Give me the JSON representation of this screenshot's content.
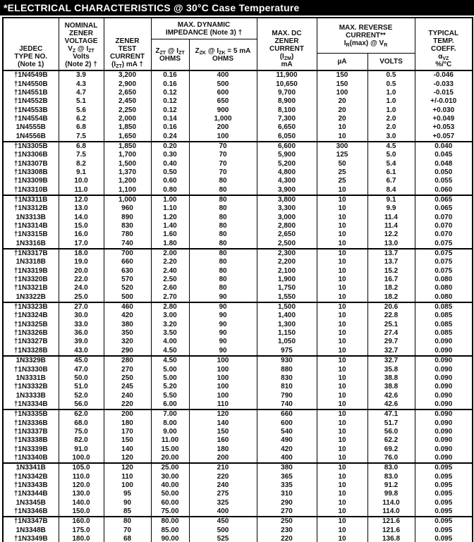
{
  "title": "*ELECTRICAL CHARACTERISTICS @ 30°C Case Temperature",
  "table": {
    "columns": {
      "jedec": {
        "lines": [
          "JEDEC",
          "TYPE NO.",
          "(Note 1)"
        ]
      },
      "vz": {
        "lines": [
          "NOMINAL",
          "ZENER",
          "VOLTAGE",
          "V_{Z} @ I_{ZT}",
          "Volts",
          "(Note 2) †"
        ]
      },
      "izt": {
        "lines": [
          "ZENER",
          "TEST",
          "CURRENT",
          "(I_{ZT}) mA †"
        ]
      },
      "impedance": {
        "lines": [
          "MAX. DYNAMIC",
          "IMPEDANCE (Note 3) †"
        ],
        "sub": [
          {
            "lines": [
              "Z_{ZT} @ I_{ZT}",
              "OHMS"
            ]
          },
          {
            "lines": [
              "Z_{ZK} @ I_{ZK} = 5 mA",
              "OHMS"
            ]
          }
        ]
      },
      "izm": {
        "lines": [
          "MAX. DC",
          "ZENER",
          "CURRENT",
          "(I_{ZM})",
          "mA"
        ]
      },
      "reverse": {
        "lines": [
          "MAX. REVERSE",
          "CURRENT**",
          "I_{R}(max) @ V_{R}"
        ],
        "sub": [
          {
            "lines": [
              "µA"
            ]
          },
          {
            "lines": [
              "VOLTS"
            ]
          }
        ]
      },
      "tc": {
        "lines": [
          "TYPICAL",
          "TEMP.",
          "COEFF.",
          "α_{VZ}",
          "%/°C"
        ]
      }
    },
    "groups": [
      {
        "rows": [
          [
            "†1N4549B",
            "3.9",
            "3,200",
            "0.16",
            "400",
            "11,900",
            "150",
            "0.5",
            "-0.046"
          ],
          [
            "†1N4550B",
            "4.3",
            "2,900",
            "0.16",
            "500",
            "10,650",
            "150",
            "0.5",
            "-0.033"
          ],
          [
            "†1N4551B",
            "4.7",
            "2,650",
            "0.12",
            "600",
            "9,700",
            "100",
            "1.0",
            "-0.015"
          ],
          [
            "†1N4552B",
            "5.1",
            "2,450",
            "0.12",
            "650",
            "8,900",
            "20",
            "1.0",
            "+/-0.010"
          ],
          [
            "†1N4553B",
            "5.6",
            "2,250",
            "0.12",
            "900",
            "8,100",
            "20",
            "1.0",
            "+0.030"
          ],
          [
            "†1N4554B",
            "6.2",
            "2,000",
            "0.14",
            "1,000",
            "7,300",
            "20",
            "2.0",
            "+0.049"
          ],
          [
            "1N4555B",
            "6.8",
            "1,850",
            "0.16",
            "200",
            "6,650",
            "10",
            "2.0",
            "+0.053"
          ],
          [
            "1N4556B",
            "7.5",
            "1,650",
            "0.24",
            "100",
            "6,050",
            "10",
            "3.0",
            "+0.057"
          ]
        ]
      },
      {
        "rows": [
          [
            "†1N3305B",
            "6.8",
            "1,850",
            "0.20",
            "70",
            "6,600",
            "300",
            "4.5",
            "0.040"
          ],
          [
            "†1N3306B",
            "7.5",
            "1,700",
            "0.30",
            "70",
            "5,900",
            "125",
            "5.0",
            "0.045"
          ],
          [
            "†1N3307B",
            "8.2",
            "1,500",
            "0.40",
            "70",
            "5,200",
            "50",
            "5.4",
            "0.048"
          ],
          [
            "†1N3308B",
            "9.1",
            "1,370",
            "0.50",
            "70",
            "4,800",
            "25",
            "6.1",
            "0.050"
          ],
          [
            "†1N3309B",
            "10.0",
            "1,200",
            "0.60",
            "80",
            "4,300",
            "25",
            "6.7",
            "0.055"
          ],
          [
            "†1N3310B",
            "11.0",
            "1,100",
            "0.80",
            "80",
            "3,900",
            "10",
            "8.4",
            "0.060"
          ]
        ]
      },
      {
        "rows": [
          [
            "†1N3311B",
            "12.0",
            "1,000",
            "1.00",
            "80",
            "3,800",
            "10",
            "9.1",
            "0.065"
          ],
          [
            "†1N3312B",
            "13.0",
            "960",
            "1.10",
            "80",
            "3,300",
            "10",
            "9.9",
            "0.065"
          ],
          [
            "1N3313B",
            "14.0",
            "890",
            "1.20",
            "80",
            "3,000",
            "10",
            "11.4",
            "0.070"
          ],
          [
            "†1N3314B",
            "15.0",
            "830",
            "1.40",
            "80",
            "2,800",
            "10",
            "11.4",
            "0.070"
          ],
          [
            "†1N3315B",
            "16.0",
            "780",
            "1.60",
            "80",
            "2,650",
            "10",
            "12.2",
            "0.070"
          ],
          [
            "1N3316B",
            "17.0",
            "740",
            "1.80",
            "80",
            "2,500",
            "10",
            "13.0",
            "0.075"
          ]
        ]
      },
      {
        "rows": [
          [
            "†1N3317B",
            "18.0",
            "700",
            "2.00",
            "80",
            "2,300",
            "10",
            "13.7",
            "0.075"
          ],
          [
            "1N3318B",
            "19.0",
            "660",
            "2.20",
            "80",
            "2,200",
            "10",
            "13.7",
            "0.075"
          ],
          [
            "†1N3319B",
            "20.0",
            "630",
            "2.40",
            "80",
            "2,100",
            "10",
            "15.2",
            "0.075"
          ],
          [
            "†1N3320B",
            "22.0",
            "570",
            "2.50",
            "80",
            "1,900",
            "10",
            "16.7",
            "0.080"
          ],
          [
            "†1N3321B",
            "24.0",
            "520",
            "2.60",
            "80",
            "1,750",
            "10",
            "18.2",
            "0.080"
          ],
          [
            "1N3322B",
            "25.0",
            "500",
            "2.70",
            "90",
            "1,550",
            "10",
            "18.2",
            "0.080"
          ]
        ]
      },
      {
        "rows": [
          [
            "†1N3323B",
            "27.0",
            "460",
            "2.80",
            "90",
            "1,500",
            "10",
            "20.6",
            "0.085"
          ],
          [
            "†1N3324B",
            "30.0",
            "420",
            "3.00",
            "90",
            "1,400",
            "10",
            "22.8",
            "0.085"
          ],
          [
            "†1N3325B",
            "33.0",
            "380",
            "3.20",
            "90",
            "1,300",
            "10",
            "25.1",
            "0.085"
          ],
          [
            "†1N3326B",
            "36.0",
            "350",
            "3.50",
            "90",
            "1,150",
            "10",
            "27.4",
            "0.085"
          ],
          [
            "†1N3327B",
            "39.0",
            "320",
            "4.00",
            "90",
            "1,050",
            "10",
            "29.7",
            "0.090"
          ],
          [
            "†1N3328B",
            "43.0",
            "290",
            "4.50",
            "90",
            "975",
            "10",
            "32.7",
            "0.090"
          ]
        ]
      },
      {
        "rows": [
          [
            "1N3329B",
            "45.0",
            "280",
            "4.50",
            "100",
            "930",
            "10",
            "32.7",
            "0.090"
          ],
          [
            "†1N3330B",
            "47.0",
            "270",
            "5.00",
            "100",
            "880",
            "10",
            "35.8",
            "0.090"
          ],
          [
            "1N3331B",
            "50.0",
            "250",
            "5.00",
            "100",
            "830",
            "10",
            "38.8",
            "0.090"
          ],
          [
            "†1N3332B",
            "51.0",
            "245",
            "5.20",
            "100",
            "810",
            "10",
            "38.8",
            "0.090"
          ],
          [
            "1N3333B",
            "52.0",
            "240",
            "5.50",
            "100",
            "790",
            "10",
            "42.6",
            "0.090"
          ],
          [
            "†1N3334B",
            "56.0",
            "220",
            "6.00",
            "110",
            "740",
            "10",
            "42.6",
            "0.090"
          ]
        ]
      },
      {
        "rows": [
          [
            "†1N3335B",
            "62.0",
            "200",
            "7.00",
            "120",
            "660",
            "10",
            "47.1",
            "0.090"
          ],
          [
            "†1N3336B",
            "68.0",
            "180",
            "8.00",
            "140",
            "600",
            "10",
            "51.7",
            "0.090"
          ],
          [
            "†1N3337B",
            "75.0",
            "170",
            "9.00",
            "150",
            "540",
            "10",
            "56.0",
            "0.090"
          ],
          [
            "†1N3338B",
            "82.0",
            "150",
            "11.00",
            "160",
            "490",
            "10",
            "62.2",
            "0.090"
          ],
          [
            "†1N3339B",
            "91.0",
            "140",
            "15.00",
            "180",
            "420",
            "10",
            "69.2",
            "0.090"
          ],
          [
            "†1N3340B",
            "100.0",
            "120",
            "20.00",
            "200",
            "400",
            "10",
            "76.0",
            "0.090"
          ]
        ]
      },
      {
        "rows": [
          [
            "1N3341B",
            "105.0",
            "120",
            "25.00",
            "210",
            "380",
            "10",
            "83.0",
            "0.095"
          ],
          [
            "†1N3342B",
            "110.0",
            "110",
            "30.00",
            "220",
            "365",
            "10",
            "83.0",
            "0.095"
          ],
          [
            "†1N3343B",
            "120.0",
            "100",
            "40.00",
            "240",
            "335",
            "10",
            "91.2",
            "0.095"
          ],
          [
            "†1N3344B",
            "130.0",
            "95",
            "50.00",
            "275",
            "310",
            "10",
            "99.8",
            "0.095"
          ],
          [
            "1N3345B",
            "140.0",
            "90",
            "60.00",
            "325",
            "290",
            "10",
            "114.0",
            "0.095"
          ],
          [
            "†1N3346B",
            "150.0",
            "85",
            "75.00",
            "400",
            "270",
            "10",
            "114.0",
            "0.095"
          ]
        ]
      },
      {
        "rows": [
          [
            "†1N3347B",
            "160.0",
            "80",
            "80.00",
            "450",
            "250",
            "10",
            "121.6",
            "0.095"
          ],
          [
            "1N3348B",
            "175.0",
            "70",
            "85.00",
            "500",
            "230",
            "10",
            "121.6",
            "0.095"
          ],
          [
            "†1N3349B",
            "180.0",
            "68",
            "90.00",
            "525",
            "220",
            "10",
            "136.8",
            "0.095"
          ],
          [
            "†1N3350B",
            "200.0",
            "65",
            "100.00",
            "600",
            "200",
            "10",
            "152.0",
            "0.100"
          ]
        ]
      }
    ]
  }
}
